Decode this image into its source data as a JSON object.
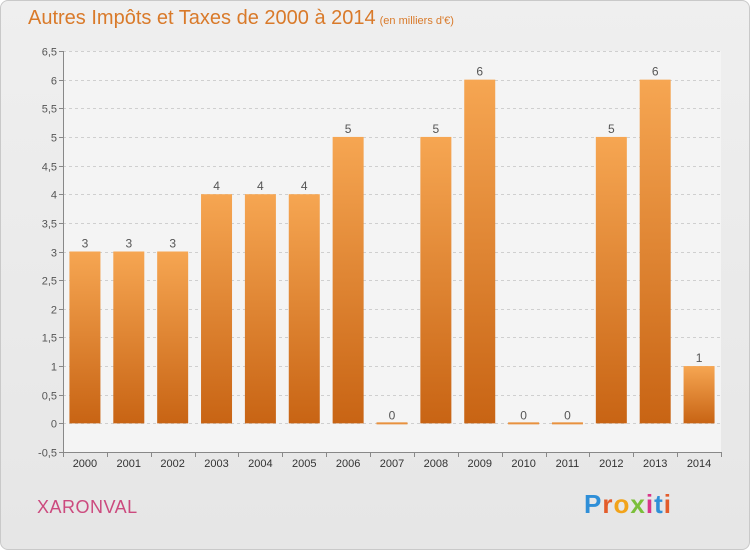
{
  "header": {
    "title": "Autres Impôts et Taxes de 2000 à 2014",
    "subtitle": "(en milliers d'€)"
  },
  "footer": {
    "commune": "XARONVAL",
    "logo_text": "Proxiti"
  },
  "colors": {
    "bar_light": "#f6a652",
    "bar_dark": "#c86414",
    "accent_title": "#d97a2a",
    "commune_text": "#cc4a7e"
  },
  "chart_data": {
    "type": "bar",
    "title": "Autres Impôts et Taxes de 2000 à 2014",
    "subtitle": "(en milliers d'€)",
    "categories": [
      "2000",
      "2001",
      "2002",
      "2003",
      "2004",
      "2005",
      "2006",
      "2007",
      "2008",
      "2009",
      "2010",
      "2011",
      "2012",
      "2013",
      "2014"
    ],
    "values": [
      3,
      3,
      3,
      4,
      4,
      4,
      5,
      0,
      5,
      6,
      0,
      0,
      5,
      6,
      1
    ],
    "data_labels": [
      "3",
      "3",
      "3",
      "4",
      "4",
      "4",
      "5",
      "0",
      "5",
      "6",
      "0",
      "0",
      "5",
      "6",
      "1"
    ],
    "ylim": [
      -0.5,
      6.5
    ],
    "yticks": [
      -0.5,
      0,
      0.5,
      1,
      1.5,
      2,
      2.5,
      3,
      3.5,
      4,
      4.5,
      5,
      5.5,
      6,
      6.5
    ],
    "ytick_labels": [
      "-0,5",
      "0",
      "0,5",
      "1",
      "1,5",
      "2",
      "2,5",
      "3",
      "3,5",
      "4",
      "4,5",
      "5",
      "5,5",
      "6",
      "6,5"
    ],
    "xlabel": "",
    "ylabel": "",
    "grid": "horizontal dashed"
  }
}
